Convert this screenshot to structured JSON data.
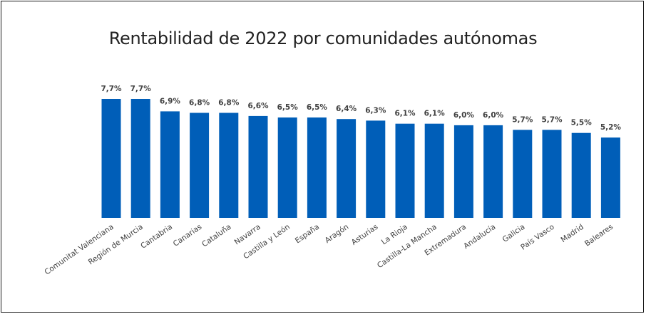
{
  "chart_data": {
    "type": "bar",
    "title": "Rentabilidad de 2022 por comunidades autónomas",
    "categories": [
      "Comunitat Valenciana",
      "Región de Murcia",
      "Cantabria",
      "Canarias",
      "Cataluña",
      "Navarra",
      "Castilla y León",
      "España",
      "Aragón",
      "Asturias",
      "La Rioja",
      "Castilla-La Mancha",
      "Extremadura",
      "Andalucía",
      "Galicia",
      "País Vasco",
      "Madrid",
      "Baleares"
    ],
    "values": [
      7.7,
      7.7,
      6.9,
      6.8,
      6.8,
      6.6,
      6.5,
      6.5,
      6.4,
      6.3,
      6.1,
      6.1,
      6.0,
      6.0,
      5.7,
      5.7,
      5.5,
      5.2
    ],
    "value_labels": [
      "7,7%",
      "7,7%",
      "6,9%",
      "6,8%",
      "6,8%",
      "6,6%",
      "6,5%",
      "6,5%",
      "6,4%",
      "6,3%",
      "6,1%",
      "6,1%",
      "6,0%",
      "6,0%",
      "5,7%",
      "5,7%",
      "5,5%",
      "5,2%"
    ],
    "ylim": [
      0,
      7.7
    ],
    "grid": false,
    "bar_color": "#005EB8",
    "xlabel": "",
    "ylabel": ""
  }
}
